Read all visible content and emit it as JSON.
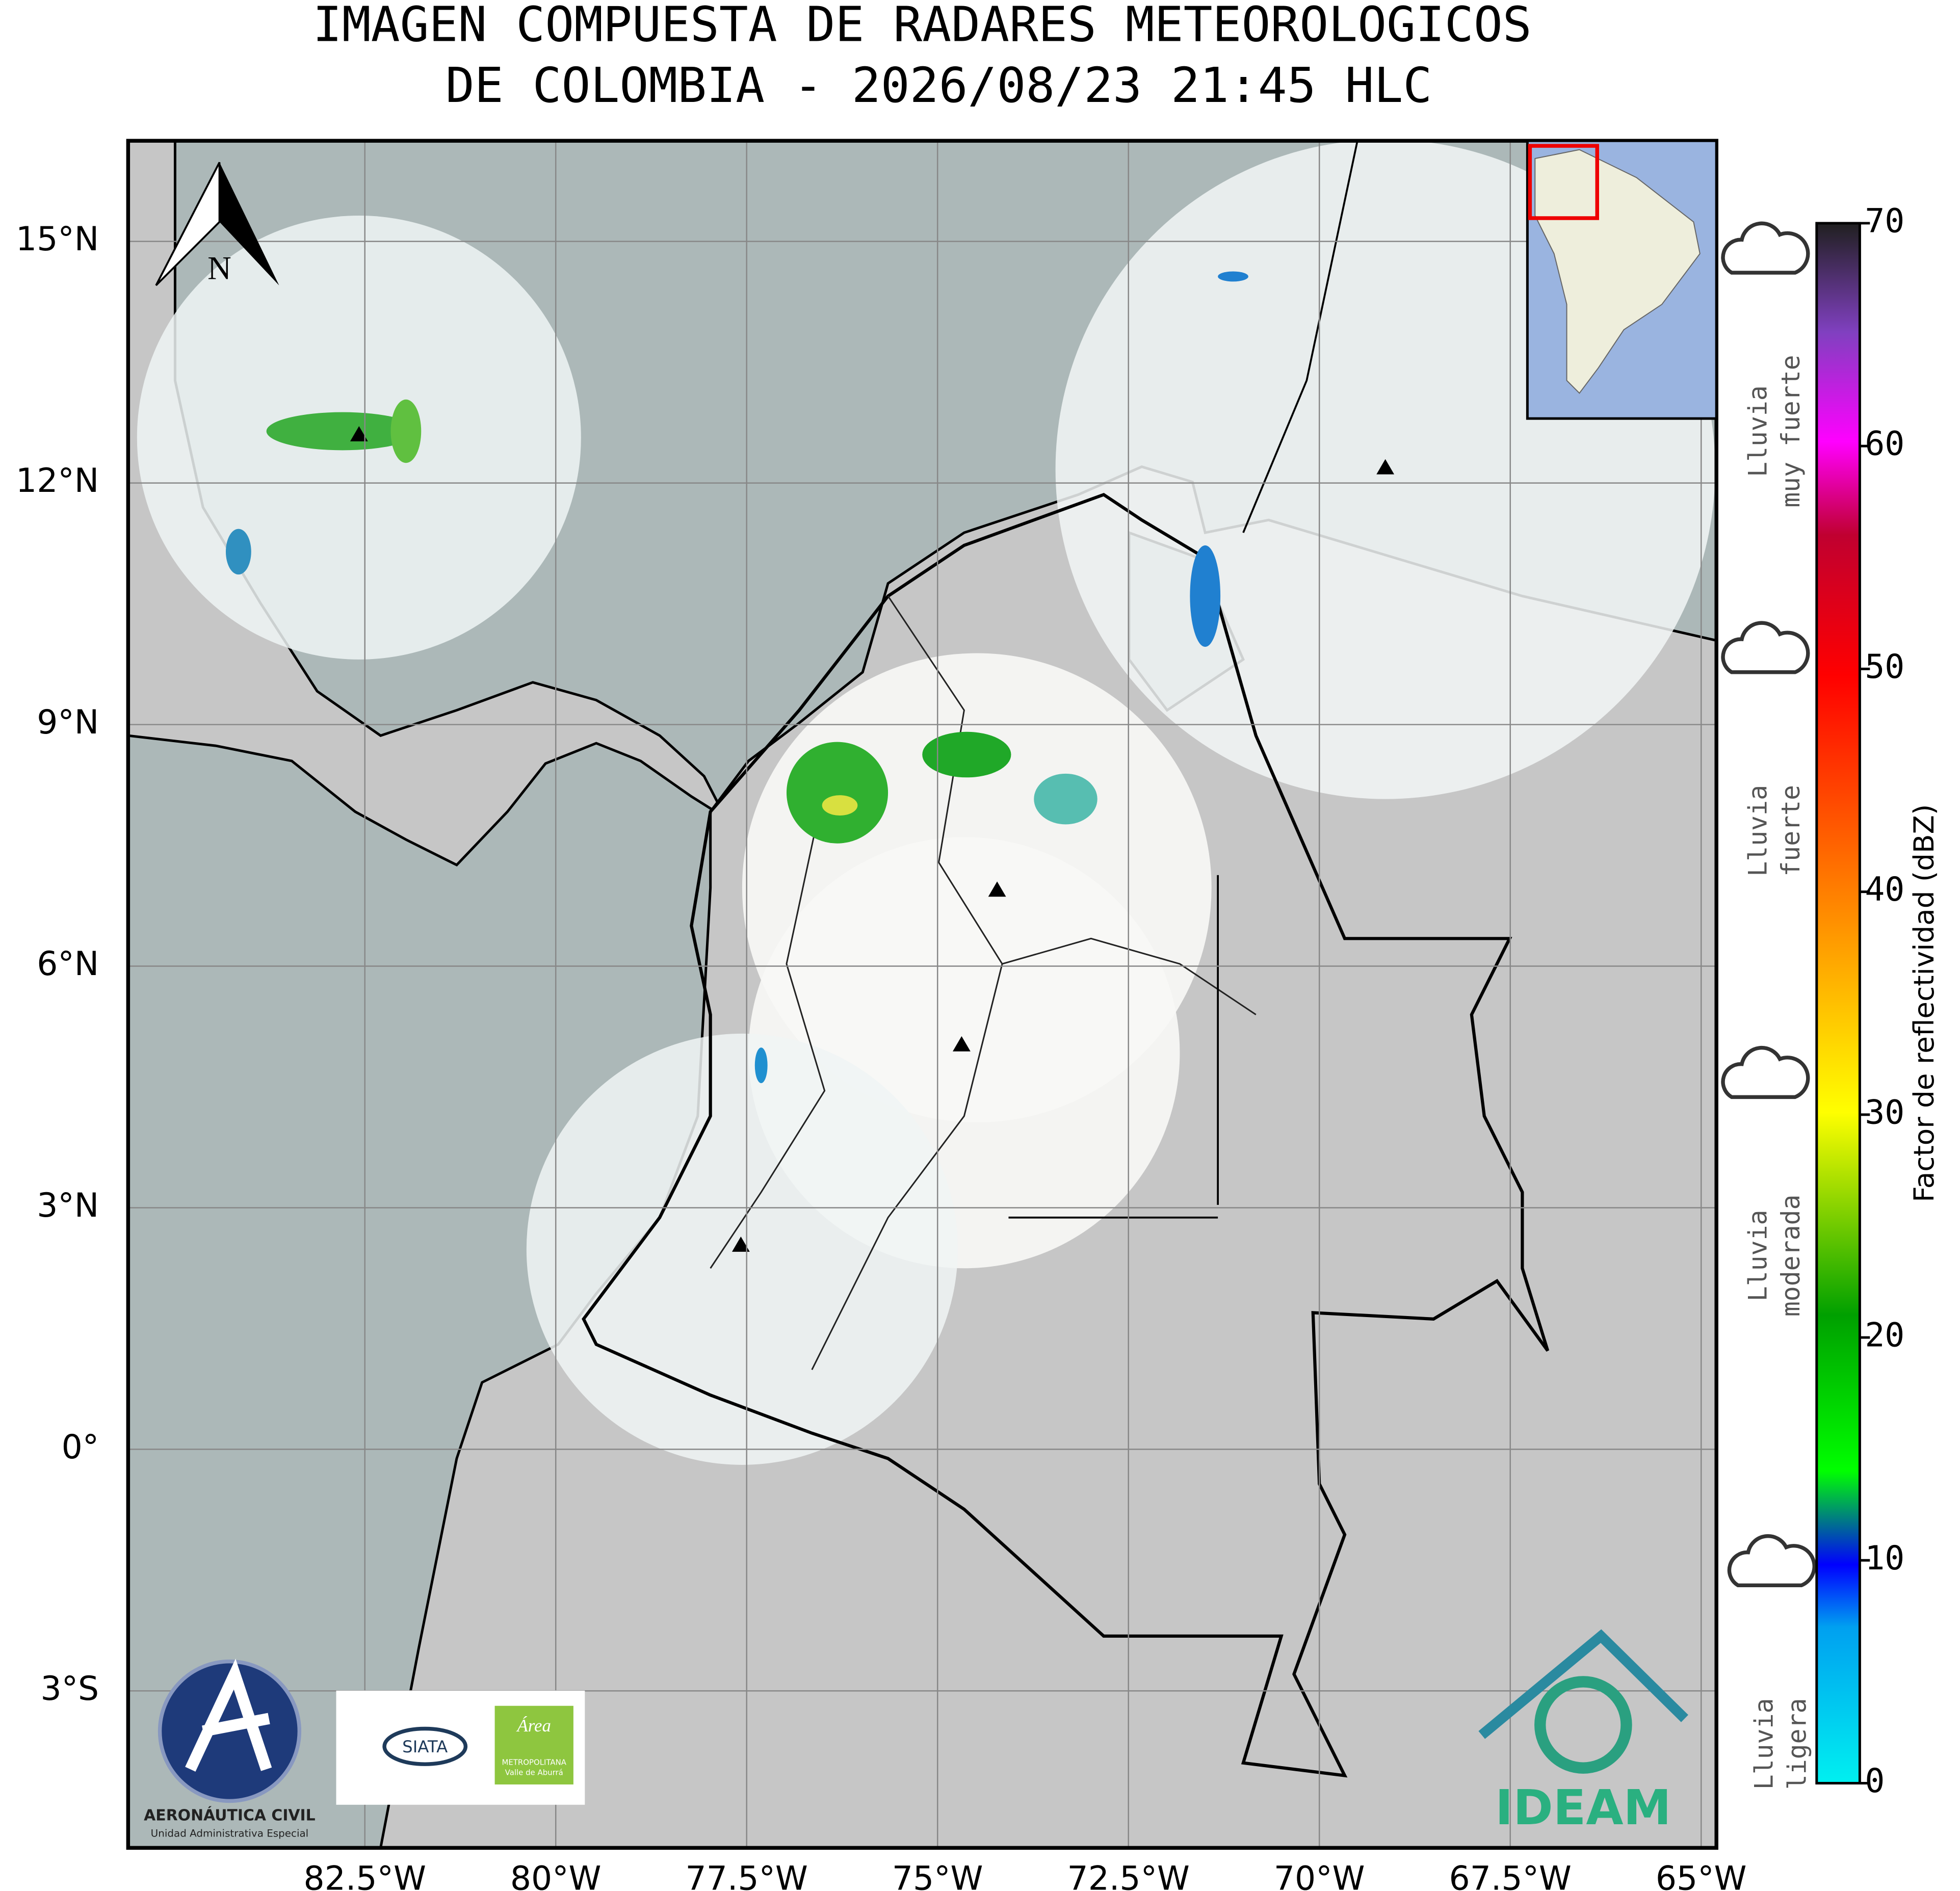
{
  "title": [
    "IMAGEN COMPUESTA DE RADARES METEOROLOGICOS",
    "DE COLOMBIA - 2026/08/23 21:45 HLC"
  ],
  "map": {
    "xlim": [
      -85.6,
      -64.8
    ],
    "ylim": [
      -4.95,
      16.25
    ],
    "xticks": [
      {
        "value": -82.5,
        "label": "82.5°W"
      },
      {
        "value": -80,
        "label": "80°W"
      },
      {
        "value": -77.5,
        "label": "77.5°W"
      },
      {
        "value": -75,
        "label": "75°W"
      },
      {
        "value": -72.5,
        "label": "72.5°W"
      },
      {
        "value": -70,
        "label": "70°W"
      },
      {
        "value": -67.5,
        "label": "67.5°W"
      },
      {
        "value": -65,
        "label": "65°W"
      }
    ],
    "yticks": [
      {
        "value": -3,
        "label": "3°S"
      },
      {
        "value": 0,
        "label": "0°"
      },
      {
        "value": 3,
        "label": "3°N"
      },
      {
        "value": 6,
        "label": "6°N"
      },
      {
        "value": 9,
        "label": "9°N"
      },
      {
        "value": 12,
        "label": "12°N"
      },
      {
        "value": 15,
        "label": "15°N"
      }
    ],
    "grid": true,
    "north": "N"
  },
  "colorbar": {
    "label": "Factor de reflectividad (dBZ)",
    "lim": [
      0,
      70
    ],
    "ticks": [
      0,
      10,
      20,
      30,
      40,
      50,
      60,
      70
    ]
  },
  "rain_legend": [
    [
      "Lluvia",
      "muy fuerte"
    ],
    [
      "Lluvia",
      "fuerte"
    ],
    [
      "Lluvia",
      "moderada"
    ],
    [
      "Lluvia",
      "ligera"
    ]
  ],
  "logos": {
    "aerocivil": [
      "AERONÁUTICA CIVIL",
      "Unidad Administrativa Especial"
    ],
    "siata": "SIATA",
    "area": [
      "Área",
      "METROPOLITANA",
      "Valle de Aburrá"
    ],
    "ideam": "IDEAM"
  }
}
